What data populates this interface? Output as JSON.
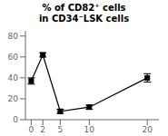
{
  "chart_data": {
    "type": "line",
    "title": "% of CD82⁺ cells\nin CD34⁻LSK cells",
    "x": [
      0,
      2,
      5,
      10,
      20
    ],
    "values": [
      37,
      62,
      8,
      12,
      40
    ],
    "yerr": [
      3,
      2,
      2,
      2,
      4
    ],
    "xlim": [
      -1,
      22
    ],
    "ylim": [
      0,
      85
    ],
    "xticks": [
      0,
      2,
      5,
      10,
      20
    ],
    "yticks": [
      0,
      20,
      40,
      60,
      80
    ],
    "color": "#000000",
    "marker": "square",
    "grid": false
  }
}
